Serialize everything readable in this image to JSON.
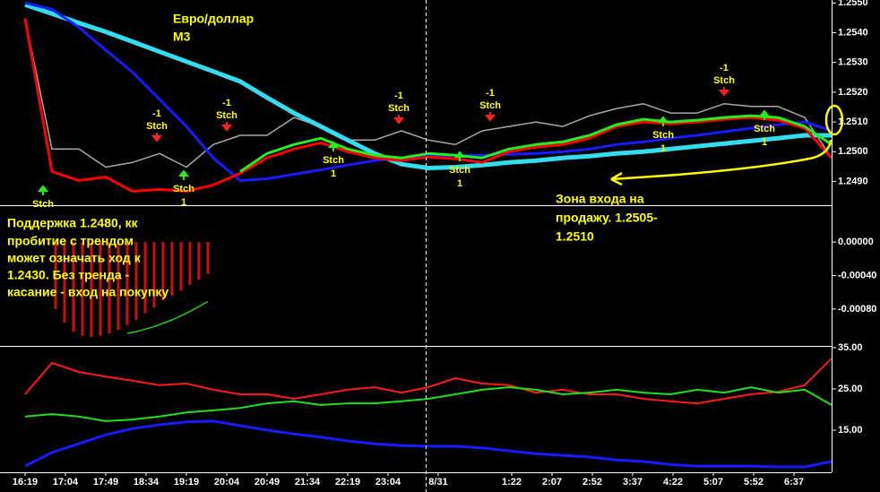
{
  "chart_data": [
    {
      "type": "line",
      "title": "Евро/доллар",
      "subtitle": "М3",
      "annotations": [
        "Зона входа на",
        "продажу. 1.2505-",
        "1.2510"
      ],
      "signals": [
        {
          "text": "Stch"
        },
        {
          "text": "Stch",
          "label": -1
        },
        {
          "text": "Stch",
          "label": 1
        },
        {
          "text": "Stch",
          "label": -1
        },
        {
          "text": "Stch",
          "label": 1
        },
        {
          "text": "Stch",
          "label": -1
        },
        {
          "text": "Stch",
          "label": 1
        },
        {
          "text": "Stch",
          "label": -1
        },
        {
          "text": "Stch",
          "label": 1
        },
        {
          "text": "Stch",
          "label": -1
        },
        {
          "text": "Stch",
          "label": 1
        }
      ],
      "x": [
        0,
        30,
        60,
        90,
        120,
        150,
        180,
        210,
        240,
        270,
        300,
        330,
        360,
        390,
        420,
        450,
        480,
        510,
        540,
        570,
        600,
        630,
        660,
        690,
        720,
        750,
        780,
        810,
        840,
        870,
        900
      ],
      "xlim": [
        -28,
        900
      ],
      "ylim": [
        1.2482,
        1.2551
      ],
      "yticks": [
        {
          "value": 1.255,
          "label": "1.2550"
        },
        {
          "value": 1.254,
          "label": "1.2540"
        },
        {
          "value": 1.253,
          "label": "1.2530"
        },
        {
          "value": 1.252,
          "label": "1.2520"
        },
        {
          "value": 1.251,
          "label": "1.2510"
        },
        {
          "value": 1.25,
          "label": "1.2500"
        },
        {
          "value": 1.249,
          "label": "1.2490"
        }
      ],
      "series": [
        {
          "color": "#a8a8a8",
          "values": [
            1.25448,
            1.25009,
            1.25009,
            1.24948,
            1.24964,
            1.24994,
            1.24948,
            1.25024,
            1.25055,
            1.25055,
            1.25115,
            1.25085,
            1.25039,
            1.25039,
            1.2507,
            1.25039,
            1.25024,
            1.2507,
            1.25085,
            1.251,
            1.25085,
            1.25121,
            1.25145,
            1.25161,
            1.2513,
            1.2513,
            1.25161,
            1.25152,
            1.25152,
            1.25115,
            1.24979
          ]
        },
        {
          "color": "#33ddee",
          "values": [
            1.25494,
            1.25464,
            1.25433,
            1.25403,
            1.2537,
            1.25336,
            1.25303,
            1.2527,
            1.25236,
            1.25182,
            1.2513,
            1.25085,
            1.25039,
            1.24994,
            1.24958,
            1.24945,
            1.24948,
            1.24955,
            1.24964,
            1.2497,
            1.24979,
            1.24985,
            1.24994,
            1.25,
            1.25009,
            1.25018,
            1.25027,
            1.25036,
            1.25045,
            1.25055,
            1.25055
          ]
        },
        {
          "color": "#1a1aff",
          "values": [
            1.255,
            1.25479,
            1.25418,
            1.25342,
            1.25267,
            1.25176,
            1.25085,
            1.24979,
            1.24903,
            1.24909,
            1.24924,
            1.24939,
            1.24955,
            1.2497,
            1.24979,
            1.24985,
            1.24988,
            1.24988,
            1.24991,
            1.24994,
            1.25,
            1.25009,
            1.25024,
            1.25033,
            1.25045,
            1.25055,
            1.25067,
            1.25079,
            1.25091,
            1.251,
            1.2507
          ]
        },
        {
          "color": "#ff0000",
          "values": [
            1.25448,
            1.24933,
            1.24903,
            1.24915,
            1.24867,
            1.24873,
            1.24867,
            1.24888,
            1.24927,
            1.24979,
            1.25009,
            1.2503,
            1.25,
            1.24979,
            1.2497,
            1.24982,
            1.24976,
            1.24964,
            1.25,
            1.25015,
            1.25024,
            1.25045,
            1.25085,
            1.251,
            1.25094,
            1.251,
            1.25109,
            1.25115,
            1.25106,
            1.25079,
            1.24979
          ]
        },
        {
          "color": "#22ee22",
          "values": [
            null,
            null,
            null,
            null,
            null,
            null,
            null,
            null,
            1.24933,
            1.24994,
            1.25024,
            1.25045,
            1.25009,
            1.24988,
            1.24979,
            1.24994,
            1.24988,
            1.24979,
            1.25009,
            1.25024,
            1.25033,
            1.25055,
            1.25091,
            1.25109,
            1.251,
            1.25106,
            1.25115,
            1.25121,
            1.25115,
            1.25085,
            1.25024
          ]
        }
      ]
    },
    {
      "type": "bar",
      "annotations": [
        "Поддержка 1.2480, кк",
        "пробитие с трендом",
        "может означать ход к",
        "1.2430. Без тренда -",
        "касание - вход на покупку"
      ],
      "x": [
        34,
        44,
        54,
        64,
        74,
        84,
        94,
        104,
        114,
        124,
        134,
        144,
        154,
        164,
        174,
        184,
        194,
        204
      ],
      "xlim": [
        -28,
        900
      ],
      "ylim": [
        -0.00123,
        0.00043
      ],
      "yticks": [
        {
          "value": 0,
          "label": "0.00000"
        },
        {
          "value": -0.0004,
          "label": "-0.00040"
        },
        {
          "value": -0.0008,
          "label": "-0.00080"
        }
      ],
      "series": [
        {
          "type": "bar",
          "color": "#cc1010",
          "values": [
            -0.0008,
            -0.00096,
            -0.00107,
            -0.00112,
            -0.00113,
            -0.00112,
            -0.00109,
            -0.00105,
            -0.00099,
            -0.00093,
            -0.00085,
            -0.00078,
            -0.0007,
            -0.00064,
            -0.00058,
            -0.00051,
            -0.00045,
            -0.00038
          ]
        },
        {
          "type": "line",
          "color": "#22cc22",
          "values": [
            null,
            null,
            null,
            null,
            null,
            null,
            null,
            null,
            -0.00109,
            -0.00107,
            -0.00104,
            -0.00101,
            -0.00097,
            -0.00093,
            -0.00088,
            -0.00083,
            -0.00077,
            -0.00071
          ]
        }
      ]
    },
    {
      "type": "line",
      "x": [
        0,
        30,
        60,
        90,
        120,
        150,
        180,
        210,
        240,
        270,
        300,
        330,
        360,
        390,
        420,
        450,
        480,
        510,
        540,
        570,
        600,
        630,
        660,
        690,
        720,
        750,
        780,
        810,
        840,
        870,
        900
      ],
      "xlim": [
        -28,
        900
      ],
      "ylim": [
        4.8,
        35.2
      ],
      "xticks": [
        {
          "value": 0,
          "label": "16:19"
        },
        {
          "value": 45,
          "label": "17:04"
        },
        {
          "value": 90,
          "label": "17:49"
        },
        {
          "value": 135,
          "label": "18:34"
        },
        {
          "value": 180,
          "label": "19:19"
        },
        {
          "value": 225,
          "label": "20:04"
        },
        {
          "value": 270,
          "label": "20:49"
        },
        {
          "value": 315,
          "label": "21:34"
        },
        {
          "value": 360,
          "label": "22:19"
        },
        {
          "value": 405,
          "label": "23:04"
        },
        {
          "value": 461,
          "label": "8/31"
        },
        {
          "value": 543,
          "label": "1:22"
        },
        {
          "value": 588,
          "label": "2:07"
        },
        {
          "value": 633,
          "label": "2:52"
        },
        {
          "value": 678,
          "label": "3:37"
        },
        {
          "value": 723,
          "label": "4:22"
        },
        {
          "value": 768,
          "label": "5:07"
        },
        {
          "value": 813,
          "label": "5:52"
        },
        {
          "value": 858,
          "label": "6:37"
        }
      ],
      "yticks": [
        {
          "value": 35,
          "label": "35.00"
        },
        {
          "value": 25,
          "label": "25.00"
        },
        {
          "value": 15,
          "label": "15.00"
        }
      ],
      "series": [
        {
          "color": "#ff1a1a",
          "values": [
            23.7,
            31.3,
            29.1,
            28.0,
            27.0,
            25.9,
            26.3,
            24.8,
            23.7,
            23.7,
            22.6,
            23.7,
            24.8,
            25.4,
            24.1,
            25.4,
            27.6,
            26.3,
            25.9,
            24.1,
            24.8,
            23.7,
            23.7,
            22.6,
            22.0,
            21.5,
            22.6,
            23.7,
            24.3,
            25.9,
            32.4
          ]
        },
        {
          "color": "#1fe01f",
          "values": [
            18.3,
            18.9,
            18.3,
            17.2,
            17.6,
            18.3,
            19.3,
            19.8,
            20.4,
            21.5,
            22.0,
            21.1,
            21.5,
            21.5,
            22.0,
            22.6,
            23.7,
            24.8,
            25.4,
            24.8,
            23.7,
            24.1,
            24.8,
            24.1,
            23.7,
            24.8,
            24.1,
            25.4,
            24.1,
            24.8,
            21.1
          ]
        },
        {
          "color": "#1a1aff",
          "values": [
            6.3,
            9.6,
            11.7,
            13.9,
            15.4,
            16.3,
            17.0,
            17.2,
            16.1,
            15.0,
            14.1,
            13.3,
            12.4,
            11.7,
            11.3,
            11.1,
            11.1,
            10.7,
            10.0,
            9.3,
            8.9,
            8.5,
            7.8,
            7.4,
            6.7,
            6.3,
            6.3,
            6.3,
            6.1,
            6.1,
            7.4
          ]
        }
      ]
    }
  ]
}
